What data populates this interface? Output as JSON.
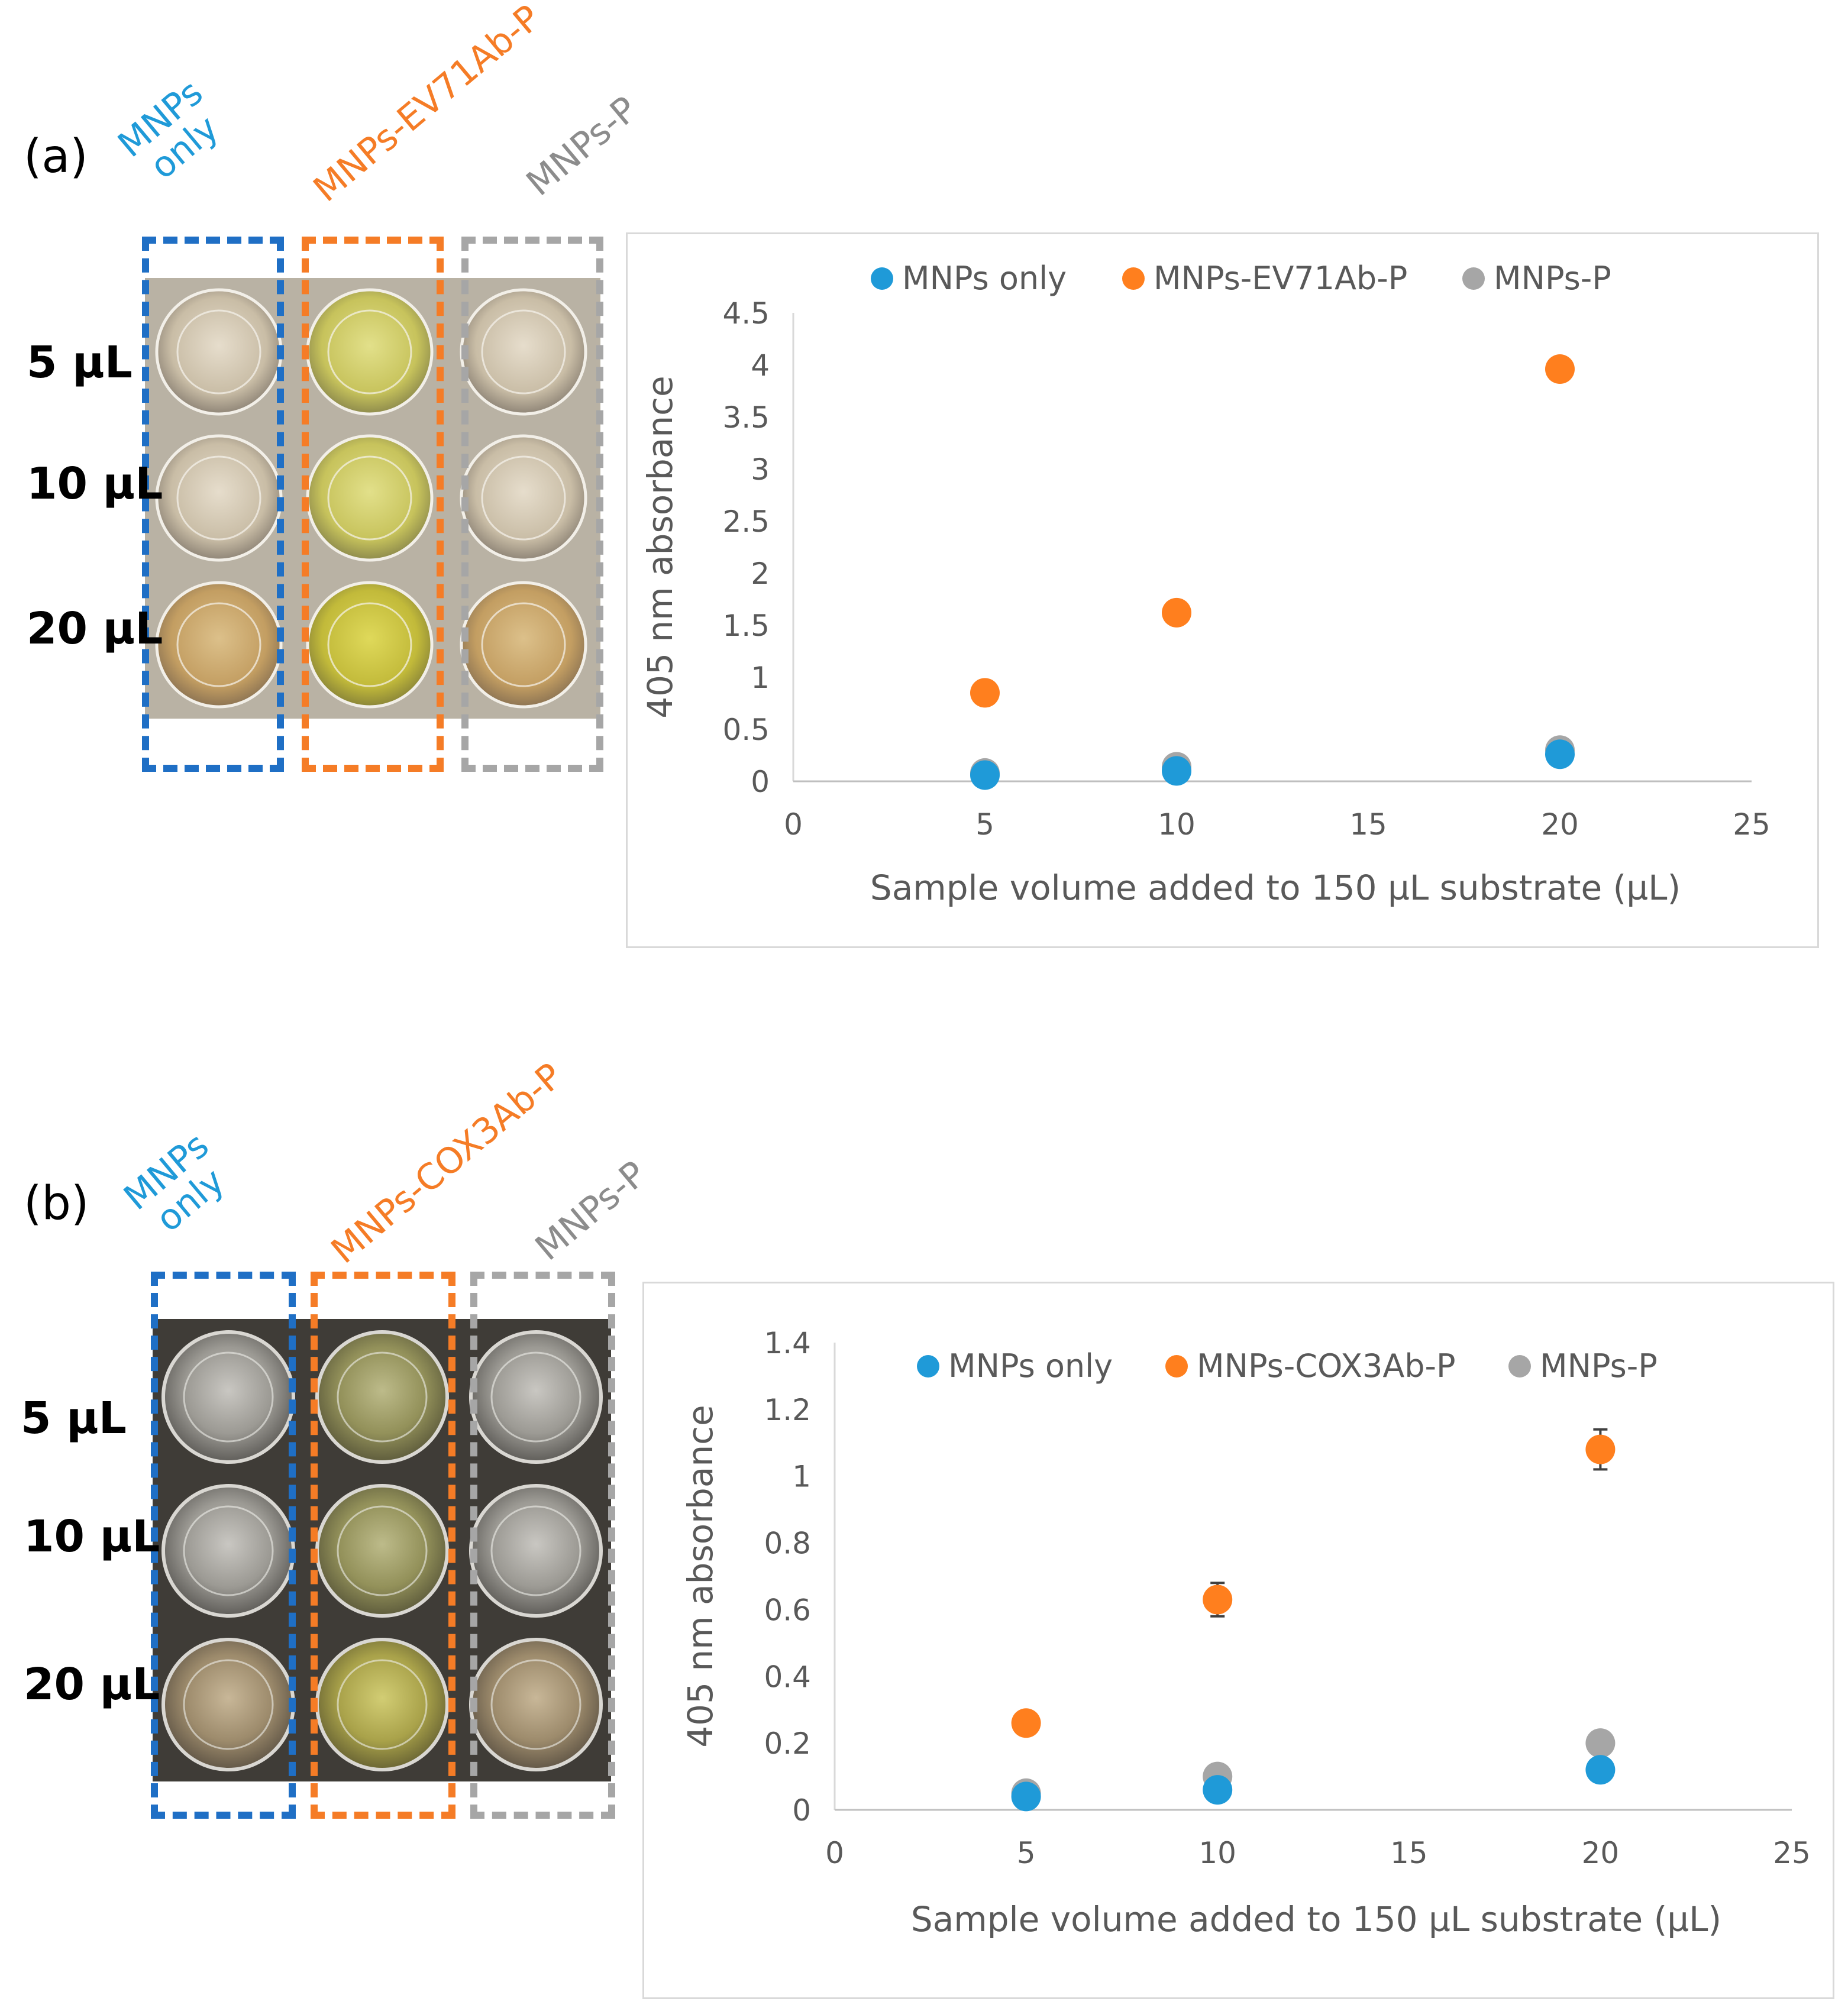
{
  "colors": {
    "blue": "#1f9ad8",
    "orange": "#ff7f1e",
    "gray": "#a6a6a6",
    "box_blue": "#1f6fc5",
    "box_orange": "#f57c26",
    "box_gray": "#a6a6a6"
  },
  "panels": [
    {
      "letter": "(a)",
      "columns": [
        "MNPs only",
        "MNPs-EV71Ab-P",
        "MNPs-P"
      ],
      "col_line1": "MNPs",
      "col_line2": "only",
      "rows": [
        "5 µL",
        "10 µL",
        "20 µL"
      ]
    },
    {
      "letter": "(b)",
      "columns": [
        "MNPs only",
        "MNPs-COX3Ab-P",
        "MNPs-P"
      ],
      "col_line1": "MNPs",
      "col_line2": "only",
      "rows": [
        "5 µL",
        "10 µL",
        "20 µL"
      ]
    }
  ],
  "chart_data": [
    {
      "type": "scatter",
      "title": "",
      "xlabel": "Sample volume added to 150 µL substrate (µL)",
      "ylabel": "405 nm absorbance",
      "xlim": [
        0,
        25
      ],
      "ylim": [
        0,
        4.5
      ],
      "xticks": [
        "0",
        "5",
        "10",
        "15",
        "20",
        "25"
      ],
      "yticks": [
        "0",
        "0.5",
        "1",
        "1.5",
        "2",
        "2.5",
        "3",
        "3.5",
        "4",
        "4.5"
      ],
      "legend_position": "top",
      "series": [
        {
          "name": "MNPs only",
          "color": "#1f9ad8",
          "x": [
            5,
            10,
            20
          ],
          "y": [
            0.06,
            0.1,
            0.26
          ],
          "err": [
            0,
            0,
            0
          ]
        },
        {
          "name": "MNPs-EV71Ab-P",
          "color": "#ff7f1e",
          "x": [
            5,
            10,
            20
          ],
          "y": [
            0.85,
            1.62,
            3.96
          ],
          "err": [
            0,
            0.08,
            0
          ]
        },
        {
          "name": "MNPs-P",
          "color": "#a6a6a6",
          "x": [
            5,
            10,
            20
          ],
          "y": [
            0.08,
            0.14,
            0.3
          ],
          "err": [
            0,
            0,
            0
          ]
        }
      ]
    },
    {
      "type": "scatter",
      "title": "",
      "xlabel": "Sample volume added to 150 µL substrate (µL)",
      "ylabel": "405 nm absorbance",
      "xlim": [
        0,
        25
      ],
      "ylim": [
        0,
        1.4
      ],
      "xticks": [
        "0",
        "5",
        "10",
        "15",
        "20",
        "25"
      ],
      "yticks": [
        "0",
        "0.2",
        "0.4",
        "0.6",
        "0.8",
        "1",
        "1.2",
        "1.4"
      ],
      "legend_position": "top",
      "series": [
        {
          "name": "MNPs only",
          "color": "#1f9ad8",
          "x": [
            5,
            10,
            20
          ],
          "y": [
            0.04,
            0.06,
            0.12
          ],
          "err": [
            0,
            0,
            0
          ]
        },
        {
          "name": "MNPs-COX3Ab-P",
          "color": "#ff7f1e",
          "x": [
            5,
            10,
            20
          ],
          "y": [
            0.26,
            0.63,
            1.08
          ],
          "err": [
            0,
            0.05,
            0.06
          ]
        },
        {
          "name": "MNPs-P",
          "color": "#a6a6a6",
          "x": [
            5,
            10,
            20
          ],
          "y": [
            0.05,
            0.1,
            0.2
          ],
          "err": [
            0,
            0,
            0
          ]
        }
      ]
    }
  ]
}
